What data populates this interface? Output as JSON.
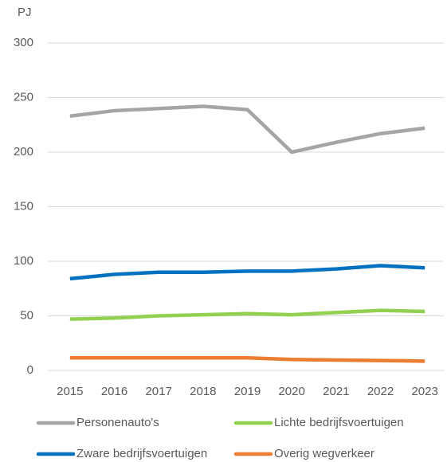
{
  "chart_data": {
    "type": "line",
    "y_label": "PJ",
    "categories": [
      "2015",
      "2016",
      "2017",
      "2018",
      "2019",
      "2020",
      "2021",
      "2022",
      "2023"
    ],
    "series": [
      {
        "name": "Personenauto's",
        "color": "#a5a5a5",
        "values": [
          233,
          238,
          240,
          242,
          239,
          200,
          209,
          217,
          222
        ]
      },
      {
        "name": "Lichte bedrijfsvoertuigen",
        "color": "#92d050",
        "values": [
          47,
          48,
          50,
          51,
          52,
          51,
          53,
          55,
          54
        ]
      },
      {
        "name": "Zware bedrijfsvoertuigen",
        "color": "#0070c0",
        "values": [
          84,
          88,
          90,
          90,
          91,
          91,
          93,
          96,
          94
        ]
      },
      {
        "name": "Overig wegverkeer",
        "color": "#ed7d31",
        "values": [
          11.5,
          11.5,
          11.5,
          11.5,
          11.5,
          10,
          9.5,
          9,
          8.5
        ]
      }
    ],
    "ylim": [
      0,
      300
    ],
    "yticks": [
      0,
      50,
      100,
      150,
      200,
      250,
      300
    ],
    "grid": true
  }
}
